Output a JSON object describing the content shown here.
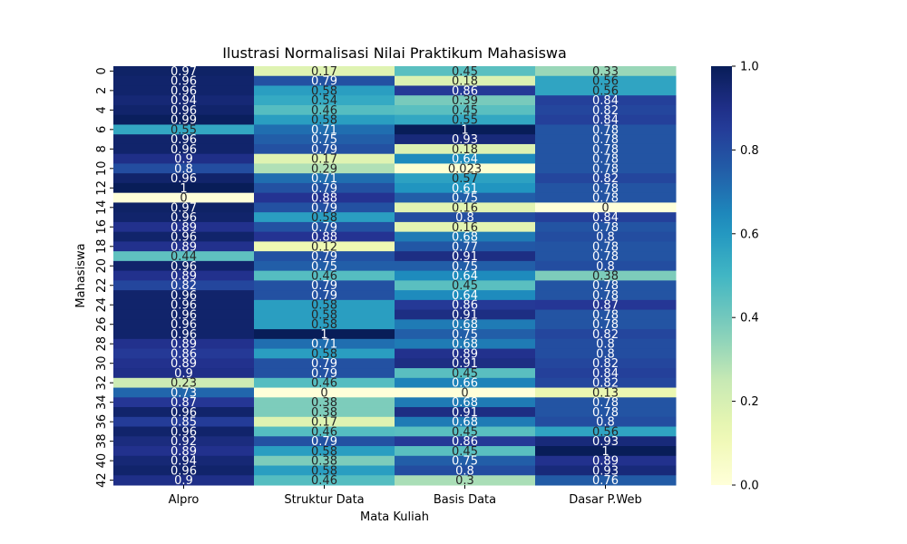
{
  "chart_data": {
    "type": "heatmap",
    "title": "Ilustrasi Normalisasi Nilai Praktikum Mahasiswa",
    "xlabel": "Mata Kuliah",
    "ylabel": "Mahasiswa",
    "columns": [
      "Alpro",
      "Struktur Data",
      "Basis Data",
      "Dasar P.Web"
    ],
    "y_tick_labels": [
      "0",
      "2",
      "4",
      "6",
      "8",
      "10",
      "12",
      "14",
      "16",
      "18",
      "20",
      "22",
      "24",
      "26",
      "28",
      "30",
      "32",
      "34",
      "36",
      "38",
      "40",
      "42"
    ],
    "colorbar": {
      "min": 0.0,
      "max": 1.0,
      "ticks": [
        "0.0",
        "0.2",
        "0.4",
        "0.6",
        "0.8",
        "1.0"
      ]
    },
    "colormap": "YlGnBu",
    "rows": [
      [
        "0.97",
        "0.17",
        "0.45",
        "0.33"
      ],
      [
        "0.96",
        "0.79",
        "0.18",
        "0.56"
      ],
      [
        "0.96",
        "0.58",
        "0.86",
        "0.56"
      ],
      [
        "0.94",
        "0.54",
        "0.39",
        "0.84"
      ],
      [
        "0.96",
        "0.46",
        "0.45",
        "0.82"
      ],
      [
        "0.99",
        "0.58",
        "0.55",
        "0.84"
      ],
      [
        "0.55",
        "0.71",
        "1",
        "0.78"
      ],
      [
        "0.96",
        "0.75",
        "0.93",
        "0.78"
      ],
      [
        "0.96",
        "0.79",
        "0.18",
        "0.78"
      ],
      [
        "0.9",
        "0.17",
        "0.64",
        "0.78"
      ],
      [
        "0.8",
        "0.29",
        "0.023",
        "0.78"
      ],
      [
        "0.96",
        "0.71",
        "0.57",
        "0.82"
      ],
      [
        "1",
        "0.79",
        "0.61",
        "0.78"
      ],
      [
        "0",
        "0.88",
        "0.75",
        "0.78"
      ],
      [
        "0.97",
        "0.79",
        "0.16",
        "0"
      ],
      [
        "0.96",
        "0.58",
        "0.8",
        "0.84"
      ],
      [
        "0.89",
        "0.79",
        "0.16",
        "0.78"
      ],
      [
        "0.96",
        "0.88",
        "0.68",
        "0.8"
      ],
      [
        "0.89",
        "0.12",
        "0.77",
        "0.78"
      ],
      [
        "0.44",
        "0.79",
        "0.91",
        "0.78"
      ],
      [
        "0.96",
        "0.75",
        "0.75",
        "0.8"
      ],
      [
        "0.89",
        "0.46",
        "0.64",
        "0.38"
      ],
      [
        "0.82",
        "0.79",
        "0.45",
        "0.78"
      ],
      [
        "0.96",
        "0.79",
        "0.64",
        "0.78"
      ],
      [
        "0.96",
        "0.58",
        "0.86",
        "0.87"
      ],
      [
        "0.96",
        "0.58",
        "0.91",
        "0.78"
      ],
      [
        "0.96",
        "0.58",
        "0.68",
        "0.78"
      ],
      [
        "0.96",
        "1",
        "0.75",
        "0.82"
      ],
      [
        "0.89",
        "0.71",
        "0.68",
        "0.8"
      ],
      [
        "0.86",
        "0.58",
        "0.89",
        "0.8"
      ],
      [
        "0.89",
        "0.79",
        "0.91",
        "0.82"
      ],
      [
        "0.9",
        "0.79",
        "0.45",
        "0.84"
      ],
      [
        "0.23",
        "0.46",
        "0.66",
        "0.82"
      ],
      [
        "0.73",
        "0",
        "0",
        "0.13"
      ],
      [
        "0.87",
        "0.38",
        "0.68",
        "0.78"
      ],
      [
        "0.96",
        "0.38",
        "0.91",
        "0.78"
      ],
      [
        "0.85",
        "0.17",
        "0.68",
        "0.8"
      ],
      [
        "0.96",
        "0.46",
        "0.45",
        "0.56"
      ],
      [
        "0.92",
        "0.79",
        "0.86",
        "0.93"
      ],
      [
        "0.89",
        "0.58",
        "0.45",
        "1"
      ],
      [
        "0.94",
        "0.38",
        "0.75",
        "0.89"
      ],
      [
        "0.96",
        "0.58",
        "0.8",
        "0.93"
      ],
      [
        "0.9",
        "0.46",
        "0.3",
        "0.76"
      ]
    ]
  }
}
